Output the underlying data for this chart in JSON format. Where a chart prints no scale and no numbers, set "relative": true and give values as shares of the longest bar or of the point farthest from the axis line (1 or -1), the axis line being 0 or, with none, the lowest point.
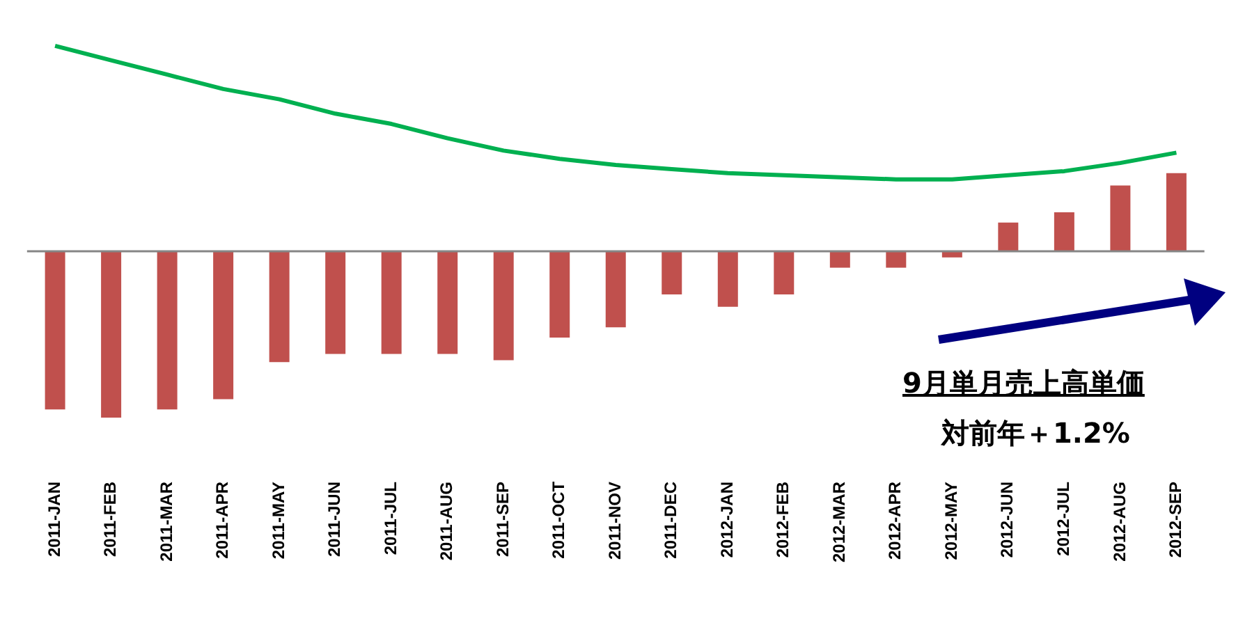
{
  "chart_data": {
    "type": "bar",
    "relative": true,
    "categories": [
      "2011-JAN",
      "2011-FEB",
      "2011-MAR",
      "2011-APR",
      "2011-MAY",
      "2011-JUN",
      "2011-JUL",
      "2011-AUG",
      "2011-SEP",
      "2011-OCT",
      "2011-NOV",
      "2011-DEC",
      "2012-JAN",
      "2012-FEB",
      "2012-MAR",
      "2012-APR",
      "2012-MAY",
      "2012-JUN",
      "2012-JUL",
      "2012-AUG",
      "2012-SEP"
    ],
    "series": [
      {
        "color": "#c0504d",
        "values": [
          -0.77,
          -0.81,
          -0.77,
          -0.72,
          -0.54,
          -0.5,
          -0.5,
          -0.5,
          -0.53,
          -0.42,
          -0.37,
          -0.21,
          -0.27,
          -0.21,
          -0.08,
          -0.08,
          -0.03,
          0.14,
          0.19,
          0.32,
          0.38
        ]
      },
      {
        "type": "line",
        "color": "#00b050",
        "values": [
          1,
          0.93,
          0.86,
          0.79,
          0.74,
          0.67,
          0.62,
          0.55,
          0.49,
          0.45,
          0.42,
          0.4,
          0.38,
          0.37,
          0.36,
          0.35,
          0.35,
          0.37,
          0.39,
          0.43,
          0.48
        ]
      }
    ],
    "annotations": [
      "9月単月売上高単価",
      "対前年＋1.2%"
    ],
    "legend": false,
    "grid": false,
    "marker": "none"
  }
}
